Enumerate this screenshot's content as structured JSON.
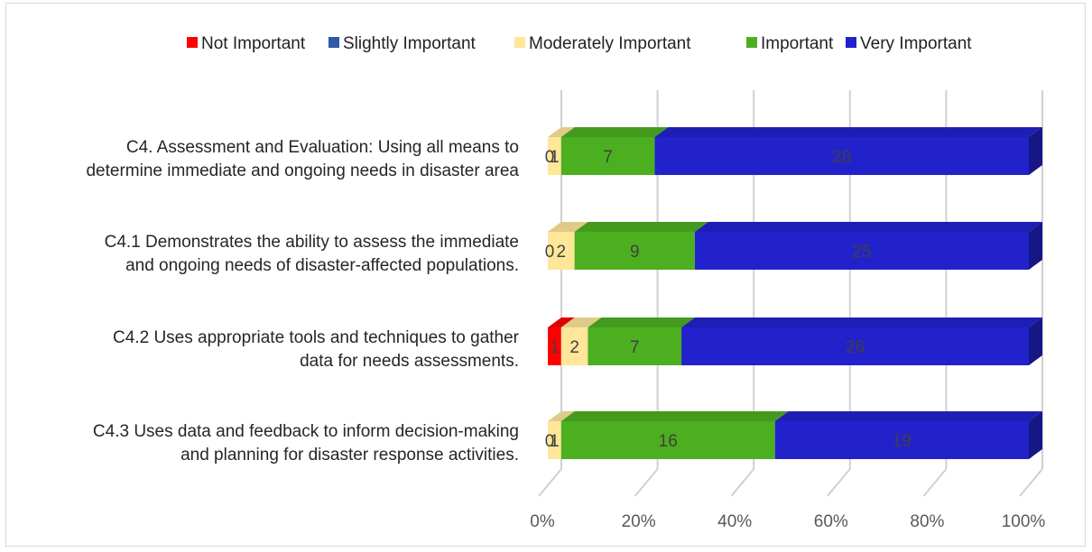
{
  "chart_data": {
    "type": "bar",
    "orientation": "horizontal",
    "stacked": "percent",
    "style": "3d",
    "legend_position": "top",
    "grid": true,
    "categories": [
      [
        "C4. Assessment and Evaluation: Using all means to",
        "determine immediate and ongoing needs in disaster area"
      ],
      [
        "C4.1 Demonstrates the ability to assess the immediate",
        "and ongoing needs of disaster-affected populations."
      ],
      [
        "C4.2 Uses appropriate tools and techniques to gather",
        "data for needs assessments."
      ],
      [
        "C4.3 Uses data and feedback to inform decision-making",
        "and planning for disaster response activities."
      ]
    ],
    "series": [
      {
        "name": "Not Important",
        "color": "#ff0000",
        "values": [
          0,
          0,
          1,
          0
        ]
      },
      {
        "name": "Slightly Important",
        "color": "#2e5aa8",
        "values": [
          0,
          0,
          0,
          0
        ]
      },
      {
        "name": "Moderately Important",
        "color": "#ffe699",
        "values": [
          1,
          2,
          2,
          1
        ]
      },
      {
        "name": "Important",
        "color": "#4caf20",
        "values": [
          7,
          9,
          7,
          16
        ]
      },
      {
        "name": "Very Important",
        "color": "#2222cc",
        "values": [
          28,
          25,
          26,
          19
        ]
      }
    ],
    "x_ticks": [
      "0%",
      "20%",
      "40%",
      "60%",
      "80%",
      "100%"
    ],
    "xlim": [
      0,
      100
    ]
  }
}
